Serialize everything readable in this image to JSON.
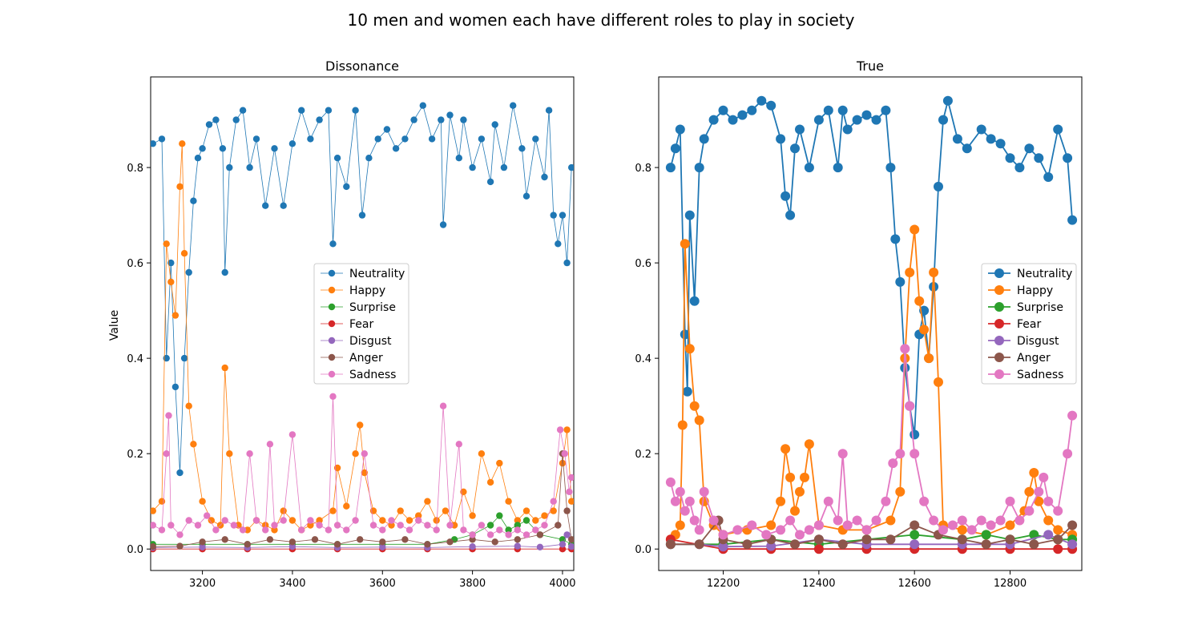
{
  "suptitle": "10 men and women each have different roles to play in society",
  "colors": {
    "Neutrality": "#1f77b4",
    "Happy": "#ff7f0e",
    "Surprise": "#2ca02c",
    "Fear": "#d62728",
    "Disgust": "#9467bd",
    "Anger": "#8c564b",
    "Sadness": "#e377c2"
  },
  "chart_data": [
    {
      "type": "line",
      "title": "Dissonance",
      "xlabel": "",
      "ylabel": "Value",
      "xlim": [
        3085,
        4025
      ],
      "ylim": [
        -0.045,
        0.99
      ],
      "xticks": [
        3200,
        3400,
        3600,
        3800,
        4000
      ],
      "yticks": [
        "0.0",
        "0.2",
        "0.4",
        "0.6",
        "0.8"
      ],
      "legend": "center-right",
      "marker_size": "small",
      "series": [
        {
          "name": "Neutrality",
          "x": [
            3090,
            3110,
            3120,
            3130,
            3140,
            3150,
            3160,
            3170,
            3180,
            3190,
            3200,
            3215,
            3230,
            3245,
            3250,
            3260,
            3275,
            3290,
            3305,
            3320,
            3340,
            3360,
            3380,
            3400,
            3420,
            3440,
            3460,
            3480,
            3490,
            3500,
            3520,
            3540,
            3555,
            3570,
            3590,
            3610,
            3630,
            3650,
            3670,
            3690,
            3710,
            3730,
            3735,
            3750,
            3770,
            3780,
            3800,
            3820,
            3840,
            3850,
            3870,
            3890,
            3910,
            3920,
            3940,
            3960,
            3970,
            3980,
            3990,
            4000,
            4010,
            4020
          ],
          "y": [
            0.85,
            0.86,
            0.4,
            0.6,
            0.34,
            0.16,
            0.4,
            0.58,
            0.73,
            0.82,
            0.84,
            0.89,
            0.9,
            0.84,
            0.58,
            0.8,
            0.9,
            0.92,
            0.8,
            0.86,
            0.72,
            0.84,
            0.72,
            0.85,
            0.92,
            0.86,
            0.9,
            0.92,
            0.64,
            0.82,
            0.76,
            0.92,
            0.7,
            0.82,
            0.86,
            0.88,
            0.84,
            0.86,
            0.9,
            0.93,
            0.86,
            0.9,
            0.68,
            0.91,
            0.82,
            0.9,
            0.8,
            0.86,
            0.77,
            0.89,
            0.8,
            0.93,
            0.84,
            0.74,
            0.86,
            0.78,
            0.92,
            0.7,
            0.64,
            0.7,
            0.6,
            0.8
          ]
        },
        {
          "name": "Happy",
          "x": [
            3090,
            3110,
            3120,
            3130,
            3140,
            3150,
            3155,
            3160,
            3170,
            3180,
            3200,
            3220,
            3240,
            3250,
            3260,
            3280,
            3300,
            3320,
            3340,
            3360,
            3380,
            3400,
            3420,
            3440,
            3460,
            3490,
            3500,
            3520,
            3540,
            3550,
            3560,
            3580,
            3600,
            3620,
            3640,
            3660,
            3680,
            3700,
            3720,
            3740,
            3760,
            3780,
            3800,
            3820,
            3840,
            3860,
            3880,
            3900,
            3920,
            3940,
            3960,
            3980,
            4000,
            4010,
            4020
          ],
          "y": [
            0.08,
            0.1,
            0.64,
            0.56,
            0.49,
            0.76,
            0.85,
            0.62,
            0.3,
            0.22,
            0.1,
            0.06,
            0.05,
            0.38,
            0.2,
            0.05,
            0.04,
            0.06,
            0.05,
            0.04,
            0.08,
            0.06,
            0.04,
            0.05,
            0.06,
            0.08,
            0.17,
            0.09,
            0.2,
            0.26,
            0.16,
            0.08,
            0.06,
            0.05,
            0.08,
            0.06,
            0.07,
            0.1,
            0.06,
            0.08,
            0.05,
            0.12,
            0.07,
            0.2,
            0.14,
            0.18,
            0.1,
            0.06,
            0.08,
            0.06,
            0.07,
            0.08,
            0.18,
            0.25,
            0.1
          ]
        },
        {
          "name": "Surprise",
          "x": [
            3090,
            3200,
            3300,
            3400,
            3500,
            3600,
            3700,
            3760,
            3800,
            3840,
            3860,
            3880,
            3900,
            3920,
            3950,
            4000,
            4020
          ],
          "y": [
            0.01,
            0.01,
            0.01,
            0.01,
            0.01,
            0.01,
            0.01,
            0.02,
            0.03,
            0.05,
            0.07,
            0.04,
            0.05,
            0.06,
            0.03,
            0.02,
            0.01
          ]
        },
        {
          "name": "Fear",
          "x": [
            3090,
            3200,
            3300,
            3400,
            3500,
            3600,
            3700,
            3800,
            3900,
            4000,
            4020
          ],
          "y": [
            0.0,
            0.0,
            0.0,
            0.0,
            0.0,
            0.0,
            0.0,
            0.0,
            0.0,
            0.0,
            0.0
          ]
        },
        {
          "name": "Disgust",
          "x": [
            3090,
            3200,
            3300,
            3400,
            3500,
            3600,
            3700,
            3800,
            3900,
            3950,
            4000,
            4010,
            4020
          ],
          "y": [
            0.003,
            0.004,
            0.003,
            0.005,
            0.003,
            0.004,
            0.003,
            0.005,
            0.006,
            0.004,
            0.01,
            0.03,
            0.005
          ]
        },
        {
          "name": "Anger",
          "x": [
            3090,
            3150,
            3200,
            3250,
            3300,
            3350,
            3400,
            3450,
            3500,
            3550,
            3600,
            3650,
            3700,
            3750,
            3800,
            3850,
            3900,
            3950,
            3990,
            4000,
            4010,
            4020
          ],
          "y": [
            0.005,
            0.006,
            0.015,
            0.02,
            0.01,
            0.02,
            0.015,
            0.02,
            0.01,
            0.02,
            0.015,
            0.02,
            0.01,
            0.015,
            0.02,
            0.015,
            0.02,
            0.03,
            0.05,
            0.2,
            0.08,
            0.02
          ]
        },
        {
          "name": "Sadness",
          "x": [
            3090,
            3110,
            3120,
            3125,
            3130,
            3150,
            3170,
            3190,
            3210,
            3230,
            3250,
            3270,
            3290,
            3305,
            3320,
            3340,
            3350,
            3360,
            3380,
            3400,
            3420,
            3440,
            3460,
            3480,
            3490,
            3500,
            3520,
            3540,
            3560,
            3580,
            3600,
            3620,
            3640,
            3660,
            3680,
            3700,
            3720,
            3735,
            3750,
            3770,
            3780,
            3800,
            3820,
            3840,
            3860,
            3880,
            3900,
            3920,
            3940,
            3960,
            3980,
            3995,
            4005,
            4015,
            4020
          ],
          "y": [
            0.05,
            0.04,
            0.2,
            0.28,
            0.05,
            0.03,
            0.06,
            0.05,
            0.07,
            0.04,
            0.06,
            0.05,
            0.04,
            0.2,
            0.06,
            0.04,
            0.22,
            0.05,
            0.06,
            0.24,
            0.04,
            0.06,
            0.05,
            0.04,
            0.32,
            0.05,
            0.04,
            0.06,
            0.2,
            0.05,
            0.04,
            0.06,
            0.05,
            0.04,
            0.06,
            0.05,
            0.04,
            0.3,
            0.05,
            0.22,
            0.04,
            0.03,
            0.05,
            0.03,
            0.04,
            0.03,
            0.04,
            0.03,
            0.04,
            0.05,
            0.1,
            0.25,
            0.2,
            0.12,
            0.15
          ]
        }
      ]
    },
    {
      "type": "line",
      "title": "True",
      "xlabel": "",
      "ylabel": "",
      "xlim": [
        12065,
        12950
      ],
      "ylim": [
        -0.045,
        0.99
      ],
      "xticks": [
        12200,
        12400,
        12600,
        12800
      ],
      "yticks": [
        "0.0",
        "0.2",
        "0.4",
        "0.6",
        "0.8"
      ],
      "legend": "center-right",
      "marker_size": "large",
      "series": [
        {
          "name": "Neutrality",
          "x": [
            12090,
            12100,
            12110,
            12120,
            12125,
            12130,
            12140,
            12150,
            12160,
            12180,
            12200,
            12220,
            12240,
            12260,
            12280,
            12300,
            12320,
            12330,
            12340,
            12350,
            12360,
            12380,
            12400,
            12420,
            12440,
            12450,
            12460,
            12480,
            12500,
            12520,
            12540,
            12550,
            12560,
            12570,
            12580,
            12590,
            12600,
            12610,
            12620,
            12630,
            12640,
            12650,
            12660,
            12670,
            12690,
            12710,
            12740,
            12760,
            12780,
            12800,
            12820,
            12840,
            12860,
            12880,
            12900,
            12920,
            12930
          ],
          "y": [
            0.8,
            0.84,
            0.88,
            0.45,
            0.33,
            0.7,
            0.52,
            0.8,
            0.86,
            0.9,
            0.92,
            0.9,
            0.91,
            0.92,
            0.94,
            0.93,
            0.86,
            0.74,
            0.7,
            0.84,
            0.88,
            0.8,
            0.9,
            0.92,
            0.8,
            0.92,
            0.88,
            0.9,
            0.91,
            0.9,
            0.92,
            0.8,
            0.65,
            0.56,
            0.38,
            0.3,
            0.24,
            0.45,
            0.5,
            0.4,
            0.55,
            0.76,
            0.9,
            0.94,
            0.86,
            0.84,
            0.88,
            0.86,
            0.85,
            0.82,
            0.8,
            0.84,
            0.82,
            0.78,
            0.88,
            0.82,
            0.69
          ]
        },
        {
          "name": "Happy",
          "x": [
            12090,
            12100,
            12110,
            12115,
            12120,
            12130,
            12140,
            12150,
            12160,
            12180,
            12200,
            12250,
            12300,
            12320,
            12330,
            12340,
            12350,
            12360,
            12370,
            12380,
            12400,
            12450,
            12500,
            12550,
            12570,
            12580,
            12590,
            12600,
            12610,
            12620,
            12630,
            12640,
            12650,
            12660,
            12700,
            12750,
            12800,
            12830,
            12840,
            12850,
            12860,
            12880,
            12900,
            12930
          ],
          "y": [
            0.02,
            0.03,
            0.05,
            0.26,
            0.64,
            0.42,
            0.3,
            0.27,
            0.1,
            0.05,
            0.03,
            0.04,
            0.05,
            0.1,
            0.21,
            0.15,
            0.08,
            0.12,
            0.15,
            0.22,
            0.05,
            0.04,
            0.04,
            0.06,
            0.12,
            0.4,
            0.58,
            0.67,
            0.52,
            0.46,
            0.4,
            0.58,
            0.35,
            0.05,
            0.04,
            0.03,
            0.05,
            0.08,
            0.12,
            0.16,
            0.1,
            0.06,
            0.04,
            0.03
          ]
        },
        {
          "name": "Surprise",
          "x": [
            12090,
            12200,
            12300,
            12400,
            12500,
            12600,
            12700,
            12750,
            12800,
            12850,
            12900,
            12930
          ],
          "y": [
            0.01,
            0.01,
            0.02,
            0.01,
            0.02,
            0.03,
            0.02,
            0.03,
            0.02,
            0.03,
            0.02,
            0.02
          ]
        },
        {
          "name": "Fear",
          "x": [
            12090,
            12200,
            12300,
            12400,
            12500,
            12600,
            12700,
            12800,
            12900,
            12930
          ],
          "y": [
            0.02,
            0.0,
            0.0,
            0.0,
            0.0,
            0.0,
            0.0,
            0.0,
            0.0,
            0.0
          ]
        },
        {
          "name": "Disgust",
          "x": [
            12090,
            12150,
            12200,
            12300,
            12400,
            12500,
            12600,
            12700,
            12800,
            12880,
            12930
          ],
          "y": [
            0.01,
            0.01,
            0.005,
            0.006,
            0.02,
            0.01,
            0.01,
            0.01,
            0.01,
            0.03,
            0.01
          ]
        },
        {
          "name": "Anger",
          "x": [
            12090,
            12150,
            12190,
            12200,
            12250,
            12300,
            12350,
            12400,
            12450,
            12500,
            12550,
            12600,
            12650,
            12700,
            12750,
            12800,
            12850,
            12900,
            12930
          ],
          "y": [
            0.01,
            0.01,
            0.06,
            0.02,
            0.01,
            0.02,
            0.01,
            0.02,
            0.01,
            0.02,
            0.02,
            0.05,
            0.03,
            0.02,
            0.01,
            0.02,
            0.01,
            0.02,
            0.05
          ]
        },
        {
          "name": "Sadness",
          "x": [
            12090,
            12100,
            12110,
            12120,
            12130,
            12140,
            12150,
            12160,
            12180,
            12200,
            12230,
            12260,
            12290,
            12320,
            12340,
            12360,
            12380,
            12400,
            12420,
            12440,
            12450,
            12460,
            12480,
            12500,
            12520,
            12540,
            12555,
            12570,
            12580,
            12590,
            12600,
            12620,
            12640,
            12660,
            12680,
            12700,
            12720,
            12740,
            12760,
            12780,
            12800,
            12820,
            12840,
            12860,
            12870,
            12880,
            12900,
            12920,
            12930
          ],
          "y": [
            0.14,
            0.1,
            0.12,
            0.08,
            0.1,
            0.06,
            0.04,
            0.12,
            0.06,
            0.03,
            0.04,
            0.05,
            0.03,
            0.04,
            0.06,
            0.03,
            0.04,
            0.05,
            0.1,
            0.06,
            0.2,
            0.05,
            0.06,
            0.04,
            0.06,
            0.1,
            0.18,
            0.2,
            0.42,
            0.3,
            0.2,
            0.1,
            0.06,
            0.04,
            0.05,
            0.06,
            0.04,
            0.06,
            0.05,
            0.06,
            0.1,
            0.06,
            0.08,
            0.12,
            0.15,
            0.1,
            0.08,
            0.2,
            0.28
          ]
        }
      ]
    }
  ]
}
